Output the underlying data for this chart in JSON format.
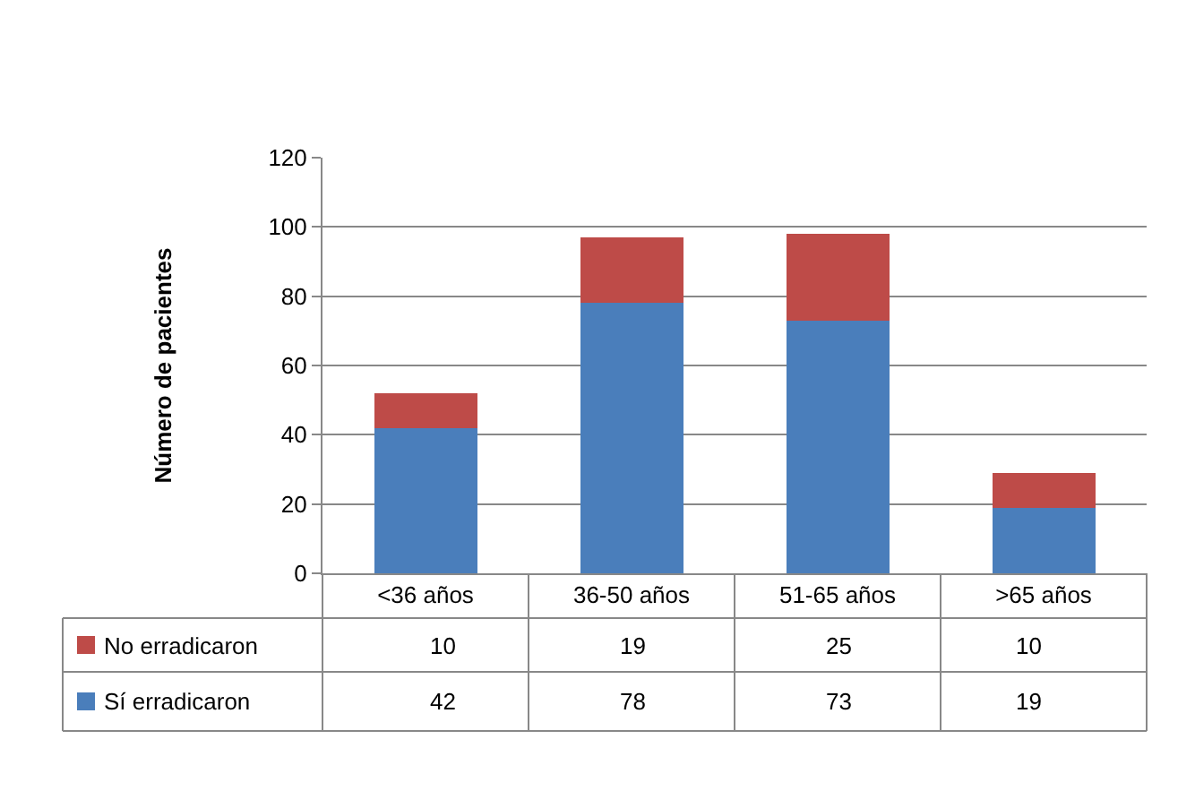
{
  "chart_data": {
    "type": "bar",
    "stacked": true,
    "ylabel": "Número de pacientes",
    "categories": [
      "<36 años",
      "36-50 años",
      "51-65 años",
      ">65 años"
    ],
    "series": [
      {
        "name": "Sí erradicaron",
        "color": "#4a7ebb",
        "values": [
          42,
          78,
          73,
          19
        ]
      },
      {
        "name": "No erradicaron",
        "color": "#be4b48",
        "values": [
          10,
          19,
          25,
          10
        ]
      }
    ],
    "ylim": [
      0,
      120
    ],
    "yticks": [
      0,
      20,
      40,
      60,
      80,
      100,
      120
    ],
    "grid": "y",
    "data_labels": true,
    "legend": "bottom left"
  }
}
